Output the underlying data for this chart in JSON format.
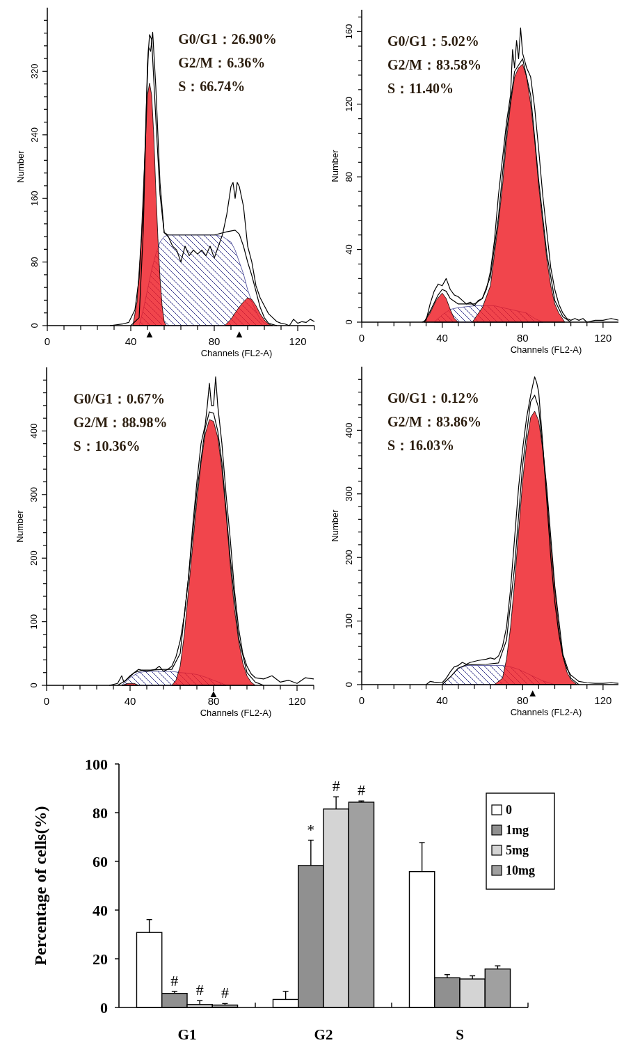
{
  "chart_data": [
    {
      "type": "area",
      "xlabel": "Channels (FL2-A)",
      "ylabel": "Number",
      "xlim": [
        0,
        128
      ],
      "ylim": [
        0,
        400
      ],
      "xticks": [
        0,
        {
          "value": 8,
          "label": null
        },
        {
          "value": 16,
          "label": null
        },
        {
          "value": 24,
          "label": null
        },
        {
          "value": 32,
          "label": null
        },
        40,
        {
          "value": 48,
          "label": null
        },
        {
          "value": 56,
          "label": null
        },
        {
          "value": 64,
          "label": null
        },
        {
          "value": 72,
          "label": null
        },
        80,
        {
          "value": 88,
          "label": null
        },
        {
          "value": 96,
          "label": null
        },
        {
          "value": 104,
          "label": null
        },
        {
          "value": 112,
          "label": null
        },
        120,
        {
          "value": 128,
          "label": null
        }
      ],
      "yticks": [
        0,
        {
          "value": 16,
          "label": null
        },
        {
          "value": 32,
          "label": null
        },
        {
          "value": 48,
          "label": null
        },
        {
          "value": 64,
          "label": null
        },
        80,
        {
          "value": 96,
          "label": null
        },
        {
          "value": 112,
          "label": null
        },
        {
          "value": 128,
          "label": null
        },
        {
          "value": 144,
          "label": null
        },
        160,
        {
          "value": 176,
          "label": null
        },
        {
          "value": 192,
          "label": null
        },
        {
          "value": 208,
          "label": null
        },
        {
          "value": 224,
          "label": null
        },
        240,
        {
          "value": 256,
          "label": null
        },
        {
          "value": 272,
          "label": null
        },
        {
          "value": 288,
          "label": null
        },
        {
          "value": 304,
          "label": null
        },
        320,
        {
          "value": 336,
          "label": null
        },
        {
          "value": 352,
          "label": null
        },
        {
          "value": 368,
          "label": null
        },
        {
          "value": 384,
          "label": null
        }
      ],
      "series": [
        {
          "type": "area",
          "color": "#ee1c25",
          "x": [
            41,
            43,
            45,
            47,
            48,
            49,
            50,
            51,
            52,
            53,
            54,
            55,
            56,
            57
          ],
          "values": [
            0,
            30,
            110,
            230,
            290,
            305,
            290,
            240,
            170,
            110,
            60,
            25,
            5,
            0
          ]
        },
        {
          "type": "area",
          "color": "#ee1c25",
          "x": [
            85,
            88,
            91,
            94,
            96,
            98,
            100,
            102,
            104,
            106,
            108
          ],
          "values": [
            0,
            8,
            20,
            30,
            35,
            33,
            25,
            15,
            7,
            2,
            0
          ]
        },
        {
          "type": "area",
          "color": "#3b3b8f",
          "x": [
            44,
            46,
            48,
            50,
            52,
            54,
            56,
            58,
            80,
            84,
            88,
            90,
            92,
            94,
            96,
            98,
            100,
            102,
            104,
            106
          ],
          "values": [
            0,
            20,
            45,
            70,
            90,
            105,
            112,
            114,
            114,
            112,
            105,
            95,
            80,
            65,
            45,
            30,
            18,
            8,
            3,
            0
          ]
        },
        {
          "type": "line",
          "color": "#000000",
          "x": [
            40,
            44,
            46,
            48,
            49,
            50,
            52,
            54,
            56,
            58,
            80,
            86,
            90,
            92,
            94,
            96,
            98,
            100,
            102,
            104,
            106,
            110
          ],
          "values": [
            0,
            10,
            120,
            330,
            366,
            360,
            260,
            165,
            117,
            114,
            114,
            118,
            120,
            115,
            100,
            80,
            63,
            43,
            23,
            10,
            3,
            0
          ]
        },
        {
          "type": "line",
          "color": "#000000",
          "x": [
            30,
            36,
            39,
            42,
            44,
            46,
            47.5,
            48.5,
            49.5,
            50.5,
            52,
            54,
            56,
            58,
            60,
            62,
            64,
            66,
            68,
            70,
            72,
            74,
            76,
            78,
            80,
            82,
            84,
            86,
            88,
            89,
            90,
            91,
            92,
            94,
            96,
            98,
            100,
            102,
            104,
            106,
            108,
            110,
            112,
            114,
            116,
            118,
            120,
            122,
            124,
            126,
            128
          ],
          "values": [
            0,
            2,
            4,
            20,
            60,
            150,
            280,
            350,
            345,
            369,
            300,
            180,
            117,
            112,
            100,
            95,
            80,
            100,
            88,
            95,
            90,
            95,
            88,
            100,
            85,
            100,
            115,
            140,
            175,
            180,
            160,
            180,
            175,
            150,
            100,
            80,
            50,
            35,
            25,
            15,
            10,
            5,
            3,
            2,
            0,
            8,
            3,
            5,
            4,
            8,
            5
          ]
        }
      ],
      "annotations": [
        "G0/G1：26.90%",
        "G2/M：6.36%",
        "S：66.74%",
        {
          "text": "▲",
          "x": 49,
          "y": 0
        },
        {
          "text": "▲",
          "x": 92,
          "y": 0
        }
      ]
    },
    {
      "type": "area",
      "xlabel": "Channels (FL2-A)",
      "ylabel": "Number",
      "xlim": [
        0,
        128
      ],
      "ylim": [
        0,
        172
      ],
      "xticks": [
        0,
        {
          "value": 8,
          "label": null
        },
        {
          "value": 16,
          "label": null
        },
        {
          "value": 24,
          "label": null
        },
        {
          "value": 32,
          "label": null
        },
        40,
        {
          "value": 48,
          "label": null
        },
        {
          "value": 56,
          "label": null
        },
        {
          "value": 64,
          "label": null
        },
        {
          "value": 72,
          "label": null
        },
        80,
        {
          "value": 88,
          "label": null
        },
        {
          "value": 96,
          "label": null
        },
        {
          "value": 104,
          "label": null
        },
        {
          "value": 112,
          "label": null
        },
        120,
        {
          "value": 128,
          "label": null
        }
      ],
      "yticks": [
        0,
        {
          "value": 8,
          "label": null
        },
        {
          "value": 16,
          "label": null
        },
        {
          "value": 24,
          "label": null
        },
        {
          "value": 32,
          "label": null
        },
        40,
        {
          "value": 48,
          "label": null
        },
        {
          "value": 56,
          "label": null
        },
        {
          "value": 64,
          "label": null
        },
        {
          "value": 72,
          "label": null
        },
        80,
        {
          "value": 88,
          "label": null
        },
        {
          "value": 96,
          "label": null
        },
        {
          "value": 104,
          "label": null
        },
        {
          "value": 112,
          "label": null
        },
        120,
        {
          "value": 128,
          "label": null
        },
        {
          "value": 136,
          "label": null
        },
        {
          "value": 144,
          "label": null
        },
        {
          "value": 152,
          "label": null
        },
        160,
        {
          "value": 168,
          "label": null
        }
      ],
      "series": [
        {
          "type": "area",
          "color": "#ee1c25",
          "x": [
            31,
            34,
            37,
            40,
            42,
            44,
            46,
            48
          ],
          "values": [
            0,
            5,
            12,
            16,
            13,
            7,
            2,
            0
          ]
        },
        {
          "type": "area",
          "color": "#ee1c25",
          "x": [
            55,
            60,
            64,
            68,
            70,
            72,
            74,
            76,
            78,
            80,
            82,
            84,
            86,
            88,
            90,
            92,
            94,
            96,
            98,
            101
          ],
          "values": [
            0,
            8,
            20,
            55,
            75,
            100,
            120,
            135,
            140,
            142,
            135,
            120,
            100,
            75,
            55,
            35,
            20,
            10,
            5,
            0
          ]
        },
        {
          "type": "area",
          "color": "#3b3b8f",
          "x": [
            36,
            40,
            44,
            48,
            56,
            62,
            66,
            70,
            74,
            78,
            82,
            86,
            90
          ],
          "values": [
            0,
            4,
            7,
            8,
            9,
            9,
            9,
            8,
            7,
            6,
            5,
            2,
            0
          ]
        },
        {
          "type": "line",
          "color": "#000000",
          "x": [
            31,
            34,
            38,
            40,
            42,
            44,
            48,
            52,
            56,
            60,
            64,
            68,
            72,
            76,
            80,
            84,
            88,
            92,
            96,
            100,
            104
          ],
          "values": [
            0,
            6,
            15,
            18,
            17,
            13,
            10,
            10,
            10,
            13,
            25,
            58,
            105,
            138,
            145,
            125,
            78,
            38,
            12,
            3,
            0
          ]
        },
        {
          "type": "line",
          "color": "#000000",
          "x": [
            30,
            32,
            34,
            36,
            38,
            40,
            42,
            44,
            46,
            48,
            50,
            52,
            54,
            56,
            58,
            60,
            62,
            64,
            66,
            68,
            70,
            72,
            74,
            75,
            76,
            77,
            78,
            79,
            80,
            82,
            84,
            86,
            88,
            90,
            92,
            94,
            96,
            98,
            100,
            102,
            104,
            106,
            108,
            110,
            112,
            116,
            120,
            124,
            128
          ],
          "values": [
            0,
            1,
            10,
            17,
            21,
            20,
            24,
            18,
            15,
            14,
            12,
            10,
            11,
            9,
            12,
            13,
            18,
            28,
            45,
            70,
            90,
            110,
            125,
            150,
            140,
            155,
            145,
            162,
            148,
            140,
            135,
            118,
            95,
            70,
            50,
            30,
            18,
            10,
            5,
            2,
            1,
            2,
            1,
            2,
            0,
            1,
            1,
            2,
            1
          ]
        }
      ],
      "annotations": [
        "G0/G1：5.02%",
        "G2/M：83.58%",
        "S：11.40%"
      ]
    },
    {
      "type": "area",
      "xlabel": "Channels (FL2-A)",
      "ylabel": "Number",
      "xlim": [
        0,
        128
      ],
      "ylim": [
        0,
        500
      ],
      "xticks": [
        0,
        {
          "value": 8,
          "label": null
        },
        {
          "value": 16,
          "label": null
        },
        {
          "value": 24,
          "label": null
        },
        {
          "value": 32,
          "label": null
        },
        40,
        {
          "value": 48,
          "label": null
        },
        {
          "value": 56,
          "label": null
        },
        {
          "value": 64,
          "label": null
        },
        {
          "value": 72,
          "label": null
        },
        80,
        {
          "value": 88,
          "label": null
        },
        {
          "value": 96,
          "label": null
        },
        {
          "value": 104,
          "label": null
        },
        {
          "value": 112,
          "label": null
        },
        120,
        {
          "value": 128,
          "label": null
        }
      ],
      "yticks": [
        0,
        {
          "value": 20,
          "label": null
        },
        {
          "value": 40,
          "label": null
        },
        {
          "value": 60,
          "label": null
        },
        {
          "value": 80,
          "label": null
        },
        100,
        {
          "value": 120,
          "label": null
        },
        {
          "value": 140,
          "label": null
        },
        {
          "value": 160,
          "label": null
        },
        {
          "value": 180,
          "label": null
        },
        200,
        {
          "value": 220,
          "label": null
        },
        {
          "value": 240,
          "label": null
        },
        {
          "value": 260,
          "label": null
        },
        {
          "value": 280,
          "label": null
        },
        300,
        {
          "value": 320,
          "label": null
        },
        {
          "value": 340,
          "label": null
        },
        {
          "value": 360,
          "label": null
        },
        {
          "value": 380,
          "label": null
        },
        400,
        {
          "value": 420,
          "label": null
        },
        {
          "value": 440,
          "label": null
        },
        {
          "value": 460,
          "label": null
        },
        {
          "value": 480,
          "label": null
        }
      ],
      "series": [
        {
          "type": "area",
          "color": "#ee1c25",
          "x": [
            36,
            39,
            42,
            44
          ],
          "values": [
            0,
            3,
            3,
            0
          ]
        },
        {
          "type": "area",
          "color": "#ee1c25",
          "x": [
            60,
            62,
            64,
            66,
            68,
            70,
            72,
            74,
            76,
            78,
            80,
            82,
            84,
            86,
            88,
            90,
            92,
            94,
            96,
            98,
            100
          ],
          "values": [
            0,
            8,
            30,
            80,
            150,
            220,
            290,
            350,
            395,
            418,
            415,
            390,
            340,
            270,
            190,
            120,
            70,
            35,
            15,
            5,
            0
          ]
        },
        {
          "type": "area",
          "color": "#3b3b8f",
          "x": [
            36,
            40,
            44,
            48,
            60,
            64,
            68,
            72,
            76,
            80,
            84,
            86
          ],
          "values": [
            0,
            12,
            20,
            22,
            22,
            20,
            19,
            17,
            13,
            8,
            3,
            0
          ]
        },
        {
          "type": "line",
          "color": "#000000",
          "x": [
            34,
            38,
            42,
            46,
            50,
            56,
            60,
            64,
            68,
            72,
            76,
            78,
            80,
            82,
            84,
            88,
            92,
            96,
            100,
            104
          ],
          "values": [
            0,
            8,
            20,
            24,
            24,
            25,
            25,
            50,
            170,
            305,
            405,
            430,
            428,
            400,
            350,
            200,
            75,
            20,
            5,
            0
          ]
        },
        {
          "type": "line",
          "color": "#000000",
          "x": [
            30,
            34,
            36,
            37,
            40,
            44,
            48,
            52,
            54,
            56,
            58,
            60,
            62,
            64,
            66,
            68,
            70,
            72,
            74,
            76,
            77,
            78,
            79,
            80,
            81,
            82,
            84,
            86,
            88,
            90,
            92,
            94,
            96,
            98,
            100,
            104,
            108,
            112,
            116,
            120,
            124,
            128
          ],
          "values": [
            0,
            3,
            15,
            5,
            15,
            25,
            22,
            25,
            30,
            22,
            25,
            30,
            45,
            70,
            110,
            170,
            250,
            320,
            380,
            410,
            440,
            475,
            440,
            440,
            485,
            440,
            380,
            300,
            230,
            150,
            90,
            50,
            30,
            18,
            12,
            10,
            15,
            5,
            8,
            3,
            12,
            10
          ]
        }
      ],
      "annotations": [
        "G0/G1：0.67%",
        "G2/M：88.98%",
        "S：10.36%",
        {
          "text": "▲",
          "x": 80,
          "y": 0
        }
      ]
    },
    {
      "type": "area",
      "xlabel": "Channels (FL2-A)",
      "ylabel": "Number",
      "xlim": [
        0,
        128
      ],
      "ylim": [
        0,
        500
      ],
      "xticks": [
        0,
        {
          "value": 8,
          "label": null
        },
        {
          "value": 16,
          "label": null
        },
        {
          "value": 24,
          "label": null
        },
        {
          "value": 32,
          "label": null
        },
        40,
        {
          "value": 48,
          "label": null
        },
        {
          "value": 56,
          "label": null
        },
        {
          "value": 64,
          "label": null
        },
        {
          "value": 72,
          "label": null
        },
        80,
        {
          "value": 88,
          "label": null
        },
        {
          "value": 96,
          "label": null
        },
        {
          "value": 104,
          "label": null
        },
        {
          "value": 112,
          "label": null
        },
        120,
        {
          "value": 128,
          "label": null
        }
      ],
      "yticks": [
        0,
        {
          "value": 20,
          "label": null
        },
        {
          "value": 40,
          "label": null
        },
        {
          "value": 60,
          "label": null
        },
        {
          "value": 80,
          "label": null
        },
        100,
        {
          "value": 120,
          "label": null
        },
        {
          "value": 140,
          "label": null
        },
        {
          "value": 160,
          "label": null
        },
        {
          "value": 180,
          "label": null
        },
        200,
        {
          "value": 220,
          "label": null
        },
        {
          "value": 240,
          "label": null
        },
        {
          "value": 260,
          "label": null
        },
        {
          "value": 280,
          "label": null
        },
        300,
        {
          "value": 320,
          "label": null
        },
        {
          "value": 340,
          "label": null
        },
        {
          "value": 360,
          "label": null
        },
        {
          "value": 380,
          "label": null
        },
        400,
        {
          "value": 420,
          "label": null
        },
        {
          "value": 440,
          "label": null
        },
        {
          "value": 460,
          "label": null
        },
        {
          "value": 480,
          "label": null
        }
      ],
      "series": [
        {
          "type": "area",
          "color": "#ee1c25",
          "x": [
            66,
            70,
            72,
            74,
            76,
            78,
            80,
            82,
            84,
            86,
            88,
            90,
            92,
            94,
            96,
            98,
            100,
            102,
            104,
            107
          ],
          "values": [
            0,
            10,
            40,
            90,
            160,
            240,
            320,
            380,
            420,
            430,
            415,
            370,
            300,
            220,
            150,
            90,
            45,
            20,
            8,
            0
          ]
        },
        {
          "type": "area",
          "color": "#3b3b8f",
          "x": [
            40,
            44,
            48,
            52,
            70,
            74,
            78,
            82,
            86,
            90,
            94,
            96
          ],
          "values": [
            0,
            12,
            25,
            30,
            30,
            28,
            24,
            18,
            12,
            6,
            2,
            0
          ]
        },
        {
          "type": "line",
          "color": "#000000",
          "x": [
            40,
            44,
            48,
            52,
            62,
            68,
            72,
            76,
            80,
            84,
            86,
            88,
            92,
            96,
            100,
            104,
            108
          ],
          "values": [
            0,
            12,
            26,
            31,
            32,
            34,
            70,
            185,
            345,
            445,
            455,
            435,
            310,
            155,
            48,
            10,
            0
          ]
        },
        {
          "type": "line",
          "color": "#000000",
          "x": [
            32,
            34,
            36,
            40,
            42,
            44,
            46,
            48,
            50,
            52,
            54,
            58,
            62,
            64,
            66,
            68,
            70,
            72,
            74,
            76,
            78,
            80,
            82,
            84,
            85,
            86,
            87,
            88,
            90,
            92,
            94,
            96,
            98,
            100,
            102,
            104,
            106,
            108,
            112,
            116,
            120,
            124,
            128
          ],
          "values": [
            0,
            5,
            4,
            3,
            10,
            20,
            28,
            30,
            35,
            32,
            35,
            38,
            40,
            42,
            40,
            45,
            60,
            90,
            150,
            230,
            310,
            370,
            420,
            455,
            470,
            484,
            475,
            460,
            380,
            290,
            200,
            130,
            80,
            45,
            25,
            15,
            10,
            5,
            3,
            2,
            2,
            3,
            2
          ]
        }
      ],
      "annotations": [
        "G0/G1：0.12%",
        "G2/M：83.86%",
        "S：16.03%",
        {
          "text": "▲",
          "x": 85,
          "y": 0
        }
      ]
    },
    {
      "type": "bar",
      "ylabel": "Percentage of cells(%)",
      "categories": [
        "G1",
        "G2",
        "S"
      ],
      "ylim": [
        0,
        100
      ],
      "yticks": [
        0,
        20,
        40,
        60,
        80,
        100
      ],
      "legend": "top right",
      "series": [
        {
          "name": "0",
          "color": "#ffffff",
          "values": [
            30.8,
            3.3,
            55.8
          ],
          "errors": [
            [
              30.8,
              36.1
            ],
            [
              3.3,
              6.6
            ],
            [
              55.8,
              67.7
            ]
          ]
        },
        {
          "name": "1mg",
          "color": "#909090",
          "values": [
            5.8,
            58.3,
            12.2
          ],
          "errors": [
            [
              5.8,
              6.6
            ],
            [
              58.3,
              68.7
            ],
            [
              12.2,
              13.5
            ]
          ],
          "value_labels": [
            "#",
            "*",
            null
          ]
        },
        {
          "name": "5mg",
          "color": "#d4d4d4",
          "values": [
            1.2,
            81.5,
            11.7
          ],
          "errors": [
            [
              1.2,
              2.8
            ],
            [
              81.5,
              86.5
            ],
            [
              11.7,
              13
            ]
          ],
          "value_labels": [
            "#",
            "#",
            null
          ]
        },
        {
          "name": "10mg",
          "color": "#a0a0a0",
          "values": [
            1,
            84.3,
            15.8
          ],
          "errors": [
            [
              1,
              1.6
            ],
            [
              84.3,
              84.8
            ],
            [
              15.8,
              17.1
            ]
          ],
          "value_labels": [
            "#",
            "#",
            null
          ]
        }
      ]
    }
  ]
}
